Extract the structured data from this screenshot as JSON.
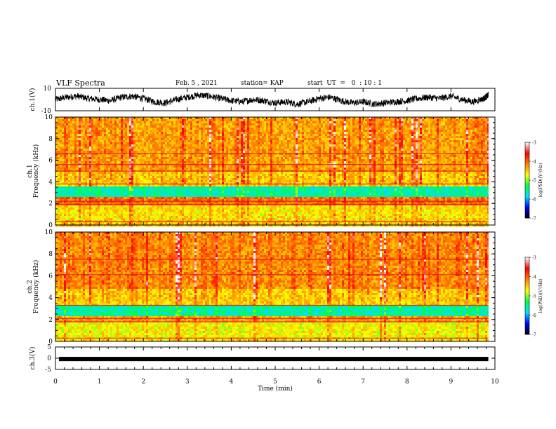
{
  "header": {
    "title": "VLF Spectra",
    "date": "Feb. 5 , 2021",
    "station": "station= KAP",
    "start_ut": "start  UT  =   0  : 10 : 1"
  },
  "colors": {
    "waveform": "#000000",
    "colormap": [
      "#000000",
      "#0000ff",
      "#00e0ff",
      "#00ff40",
      "#ffff00",
      "#ff8000",
      "#ff0000",
      "#ffffff"
    ]
  },
  "chart_data": [
    {
      "type": "line",
      "id": "ch1-waveform",
      "ylabel": "ch.1(V)",
      "ylim": [
        -10,
        10
      ],
      "yticks": [
        "10",
        "-10"
      ],
      "xlim": [
        0,
        10
      ],
      "series": [
        {
          "x": [
            0,
            0.25,
            0.5,
            0.75,
            1,
            1.25,
            1.5,
            1.75,
            2,
            2.25,
            2.5,
            2.75,
            3,
            3.25,
            3.5,
            3.75,
            4,
            4.25,
            4.5,
            4.75,
            5,
            5.25,
            5.5,
            5.75,
            6,
            6.25,
            6.5,
            6.75,
            7,
            7.25,
            7.5,
            7.75,
            8,
            8.25,
            8.5,
            8.75,
            9,
            9.25,
            9.5,
            9.75,
            9.85
          ],
          "values": [
            0,
            2,
            3,
            1,
            0,
            -1,
            2,
            3,
            1,
            -2,
            -3,
            0,
            2,
            4,
            3,
            1,
            -1,
            -2,
            0,
            -1,
            -3,
            -2,
            -4,
            -2,
            1,
            2,
            -1,
            -3,
            -2,
            -4,
            -3,
            -2,
            -1,
            1,
            2,
            1,
            3,
            0,
            -2,
            1,
            4
          ]
        }
      ]
    },
    {
      "type": "heatmap",
      "id": "ch1-spectrogram",
      "ylabel": "ch.1\nFrequency  (kHz)",
      "ylim": [
        0,
        10
      ],
      "yticks": [
        "0",
        "2",
        "4",
        "6",
        "8",
        "10"
      ],
      "xlim": [
        0,
        10
      ],
      "colorbar": {
        "label": "log(PSD)(V²/Hz)",
        "range": [
          -7,
          -3
        ],
        "ticks": [
          "-3",
          "-4",
          "-5",
          "-6",
          "-7"
        ]
      },
      "band_levels": [
        {
          "f_from": 0,
          "f_to": 0.5,
          "log_psd": -4.5
        },
        {
          "f_from": 0.5,
          "f_to": 2.0,
          "log_psd": -4.6
        },
        {
          "f_from": 2.0,
          "f_to": 2.6,
          "log_psd": -4.1
        },
        {
          "f_from": 2.6,
          "f_to": 3.6,
          "log_psd": -5.6
        },
        {
          "f_from": 3.6,
          "f_to": 5.0,
          "log_psd": -4.5
        },
        {
          "f_from": 5.0,
          "f_to": 10.0,
          "log_psd": -4.3
        }
      ],
      "lines_khz": [
        0.3,
        1.9,
        2.2,
        3.8,
        5.0,
        5.6,
        6.6
      ]
    },
    {
      "type": "heatmap",
      "id": "ch2-spectrogram",
      "ylabel": "ch.2\nFrequency  (kHz)",
      "ylim": [
        0,
        10
      ],
      "yticks": [
        "0",
        "2",
        "4",
        "6",
        "8",
        "10"
      ],
      "xlim": [
        0,
        10
      ],
      "colorbar": {
        "label": "log(PSD)(V²/Hz)",
        "range": [
          -7,
          -3
        ],
        "ticks": [
          "-3",
          "-4",
          "-5",
          "-6",
          "-7"
        ]
      },
      "band_levels": [
        {
          "f_from": 0,
          "f_to": 0.5,
          "log_psd": -4.6
        },
        {
          "f_from": 0.5,
          "f_to": 1.8,
          "log_psd": -4.7
        },
        {
          "f_from": 1.8,
          "f_to": 2.4,
          "log_psd": -4.3
        },
        {
          "f_from": 2.4,
          "f_to": 3.4,
          "log_psd": -5.6
        },
        {
          "f_from": 3.4,
          "f_to": 5.0,
          "log_psd": -4.5
        },
        {
          "f_from": 5.0,
          "f_to": 10.0,
          "log_psd": -4.2
        }
      ],
      "lines_khz": [
        0.3,
        1.8,
        2.1,
        3.3,
        6.1,
        7.5
      ]
    },
    {
      "type": "line",
      "id": "ch3-waveform",
      "ylabel": "ch.3(V)",
      "ylim": [
        -5,
        5
      ],
      "yticks": [
        "5",
        "0",
        "-5"
      ],
      "xlim": [
        0,
        10
      ],
      "series": [
        {
          "x": [
            0.08,
            9.85
          ],
          "values_min": -1.3,
          "values_max": 0.6
        }
      ]
    }
  ],
  "xaxis": {
    "label": "Time  (min)",
    "ticks": [
      "0",
      "1",
      "2",
      "3",
      "4",
      "5",
      "6",
      "7",
      "8",
      "9",
      "10"
    ],
    "range": [
      0,
      10
    ]
  }
}
